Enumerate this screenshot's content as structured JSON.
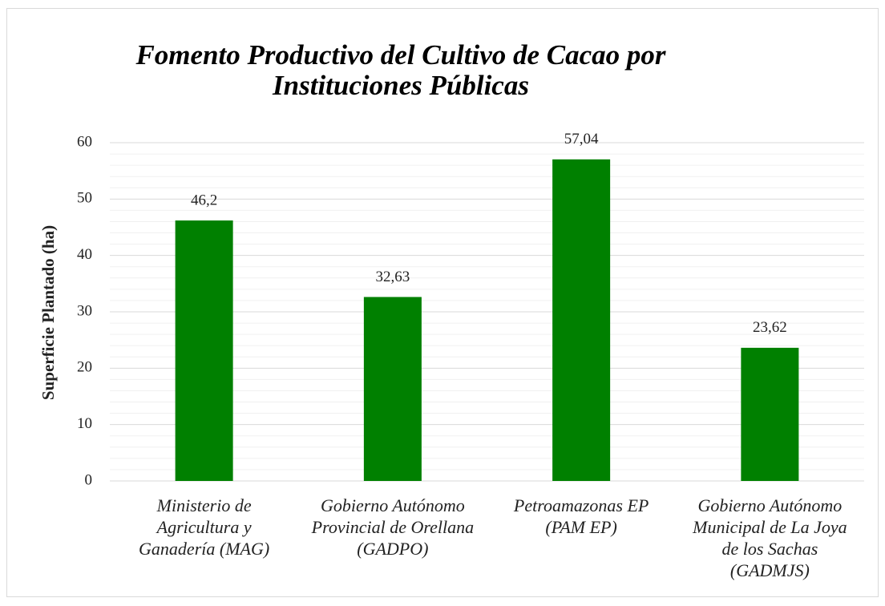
{
  "chart_data": {
    "type": "bar",
    "title": "Fomento Productivo del Cultivo de Cacao por Instituciones Públicas",
    "y_label": "Superficie  Plantado (ha)",
    "categories": [
      "Ministerio de Agricultura y Ganadería (MAG)",
      "Gobierno Autónomo Provincial de Orellana (GADPO)",
      "Petroamazonas EP (PAM EP)",
      "Gobierno Autónomo Municipal de La Joya de los Sachas (GADMJS)"
    ],
    "values": [
      46.2,
      32.63,
      57.04,
      23.62
    ],
    "value_labels": [
      "46,2",
      "32,63",
      "57,04",
      "23,62"
    ],
    "color": "#008000",
    "ylim": [
      0,
      60
    ],
    "yticks": [
      0,
      10,
      20,
      30,
      40,
      50,
      60
    ],
    "minor_yticks": [
      2,
      4,
      6,
      8,
      12,
      14,
      16,
      18,
      22,
      24,
      26,
      28,
      32,
      34,
      36,
      38,
      42,
      44,
      46,
      48,
      52,
      54,
      56,
      58
    ],
    "grid": true
  }
}
